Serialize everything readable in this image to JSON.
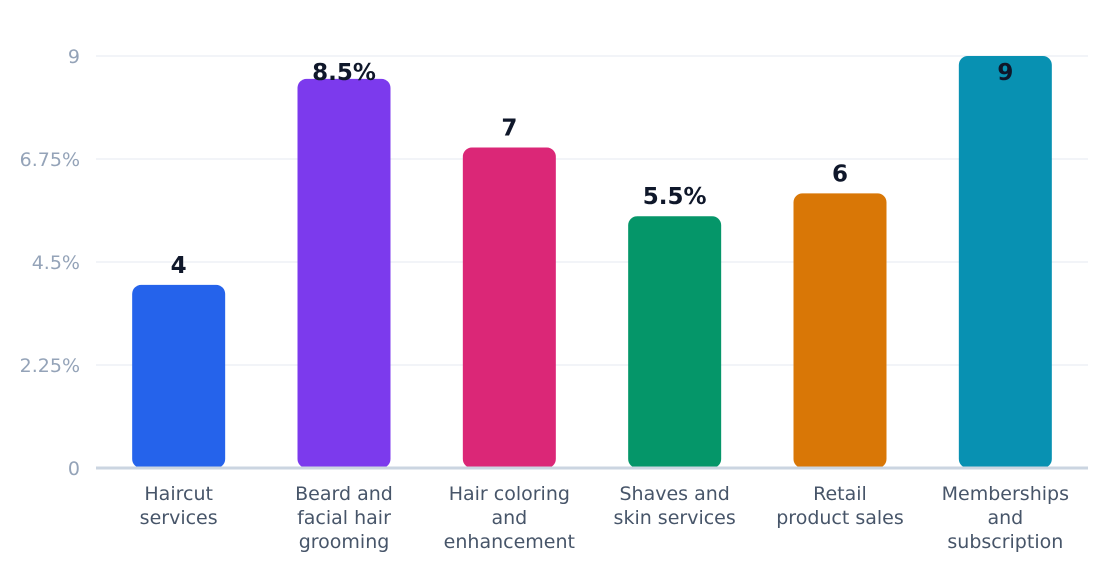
{
  "chart_data": {
    "type": "bar",
    "categories": [
      [
        "Haircut",
        "services"
      ],
      [
        "Beard and",
        "facial hair",
        "grooming"
      ],
      [
        "Hair coloring",
        "and",
        "enhancement"
      ],
      [
        "Shaves and",
        "skin services"
      ],
      [
        "Retail",
        "product sales"
      ],
      [
        "Memberships",
        "and",
        "subscription"
      ]
    ],
    "values": [
      4,
      8.5,
      7,
      5.5,
      6,
      9
    ],
    "data_labels": [
      "4",
      "8.5%",
      "7",
      "5.5%",
      "6",
      "9"
    ],
    "colors": [
      "#2563eb",
      "#7c3aed",
      "#db2777",
      "#059669",
      "#d97706",
      "#0891b2"
    ],
    "y_ticks": [
      0,
      2.25,
      4.5,
      6.75,
      9
    ],
    "y_tick_labels": [
      "0",
      "2.25%",
      "4.5%",
      "6.75%",
      "9"
    ],
    "ylim": [
      0,
      9
    ],
    "grid": true,
    "legend": "none"
  }
}
